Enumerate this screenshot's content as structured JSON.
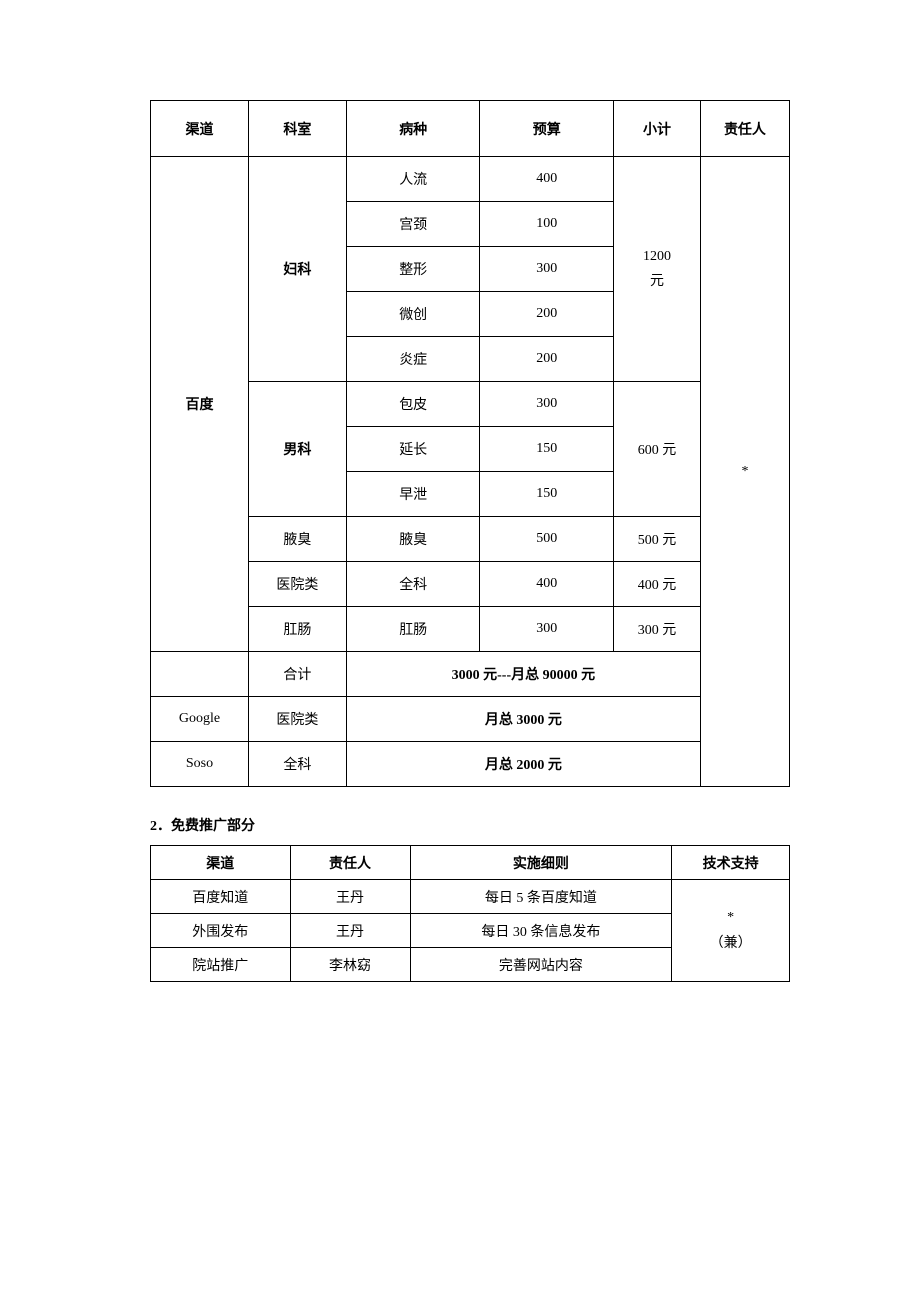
{
  "table1": {
    "headers": {
      "channel": "渠道",
      "dept": "科室",
      "disease": "病种",
      "budget": "预算",
      "subtotal": "小计",
      "person": "责任人"
    },
    "baidu": {
      "channel": "百度",
      "fuke": {
        "dept": "妇科",
        "rows": [
          {
            "disease": "人流",
            "budget": "400"
          },
          {
            "disease": "宫颈",
            "budget": "100"
          },
          {
            "disease": "整形",
            "budget": "300"
          },
          {
            "disease": "微创",
            "budget": "200"
          },
          {
            "disease": "炎症",
            "budget": "200"
          }
        ],
        "subtotal_line1": "1200",
        "subtotal_line2": "元"
      },
      "nanke": {
        "dept": "男科",
        "rows": [
          {
            "disease": "包皮",
            "budget": "300"
          },
          {
            "disease": "延长",
            "budget": "150"
          },
          {
            "disease": "早泄",
            "budget": "150"
          }
        ],
        "subtotal": "600 元"
      },
      "yechou": {
        "dept": "腋臭",
        "disease": "腋臭",
        "budget": "500",
        "subtotal": "500 元"
      },
      "yiyuan": {
        "dept": "医院类",
        "disease": "全科",
        "budget": "400",
        "subtotal": "400 元"
      },
      "gangchang": {
        "dept": "肛肠",
        "disease": "肛肠",
        "budget": "300",
        "subtotal": "300 元"
      }
    },
    "heji": {
      "dept": "合计",
      "text": "3000 元---月总 90000 元"
    },
    "google": {
      "channel": "Google",
      "dept": "医院类",
      "text": "月总 3000 元"
    },
    "soso": {
      "channel": "Soso",
      "dept": "全科",
      "text": "月总 2000 元"
    },
    "person": "*"
  },
  "section2_title": "2．免费推广部分",
  "table2": {
    "headers": {
      "channel": "渠道",
      "person": "责任人",
      "detail": "实施细则",
      "support": "技术支持"
    },
    "rows": [
      {
        "channel": "百度知道",
        "person": "王丹",
        "detail": "每日 5 条百度知道"
      },
      {
        "channel": "外围发布",
        "person": "王丹",
        "detail": "每日 30 条信息发布"
      },
      {
        "channel": "院站推广",
        "person": "李林窈",
        "detail": "完善网站内容"
      }
    ],
    "support_line1": "*",
    "support_line2": "（兼）"
  }
}
